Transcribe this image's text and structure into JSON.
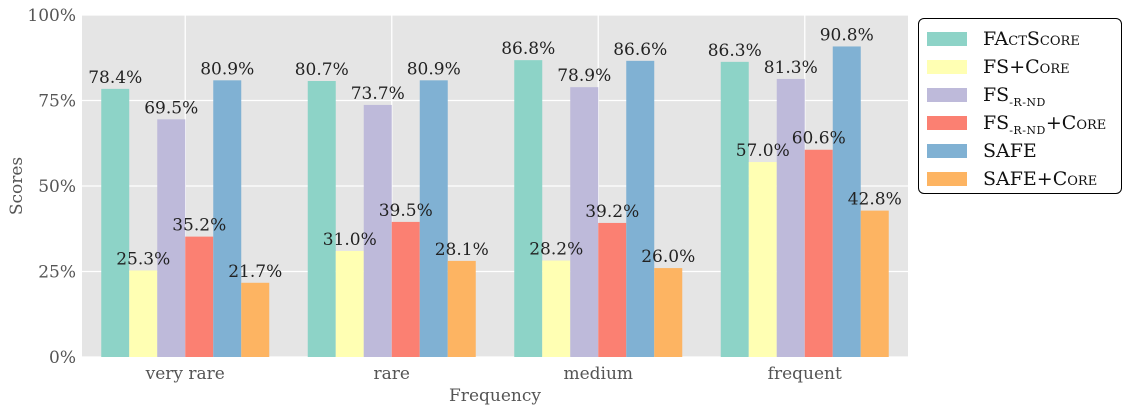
{
  "chart_data": {
    "type": "bar",
    "xlabel": "Frequency",
    "ylabel": "Scores",
    "ylim": [
      0,
      100
    ],
    "yticks": [
      "0%",
      "25%",
      "50%",
      "75%",
      "100%"
    ],
    "grid": true,
    "legend_position": "right",
    "categories": [
      "very rare",
      "rare",
      "medium",
      "frequent"
    ],
    "series": [
      {
        "name": "FActScore",
        "color": "#8dd3c7",
        "values": [
          78.4,
          80.7,
          86.8,
          86.3
        ],
        "labels": [
          "78.4%",
          "80.7%",
          "86.8%",
          "86.3%"
        ]
      },
      {
        "name": "FS+Core",
        "color": "#ffffb3",
        "values": [
          25.3,
          31.0,
          28.2,
          57.0
        ],
        "labels": [
          "25.3%",
          "31.0%",
          "28.2%",
          "57.0%"
        ]
      },
      {
        "name": "FS-R-ND",
        "color": "#bebada",
        "values": [
          69.5,
          73.7,
          78.9,
          81.3
        ],
        "labels": [
          "69.5%",
          "73.7%",
          "78.9%",
          "81.3%"
        ]
      },
      {
        "name": "FS-R-ND+Core",
        "color": "#fb8072",
        "values": [
          35.2,
          39.5,
          39.2,
          60.6
        ],
        "labels": [
          "35.2%",
          "39.5%",
          "39.2%",
          "60.6%"
        ]
      },
      {
        "name": "SAFE",
        "color": "#80b1d3",
        "values": [
          80.9,
          80.9,
          86.6,
          90.8
        ],
        "labels": [
          "80.9%",
          "80.9%",
          "86.6%",
          "90.8%"
        ]
      },
      {
        "name": "SAFE+Core",
        "color": "#fdb462",
        "values": [
          21.7,
          28.1,
          26.0,
          42.8
        ],
        "labels": [
          "21.7%",
          "28.1%",
          "26.0%",
          "42.8%"
        ]
      }
    ]
  },
  "legend": {
    "s0": {
      "main": "FA",
      "sc": "ct",
      "rest": "S",
      "sc2": "core"
    },
    "s1": {
      "main": "FS+C",
      "sc": "ore"
    },
    "s2": {
      "main": "FS",
      "sub": "-R-ND"
    },
    "s3": {
      "main": "FS",
      "sub": "-R-ND",
      "rest": "+C",
      "sc": "ore"
    },
    "s4": {
      "main": "SAFE"
    },
    "s5": {
      "main": "SAFE+C",
      "sc": "ore"
    }
  }
}
